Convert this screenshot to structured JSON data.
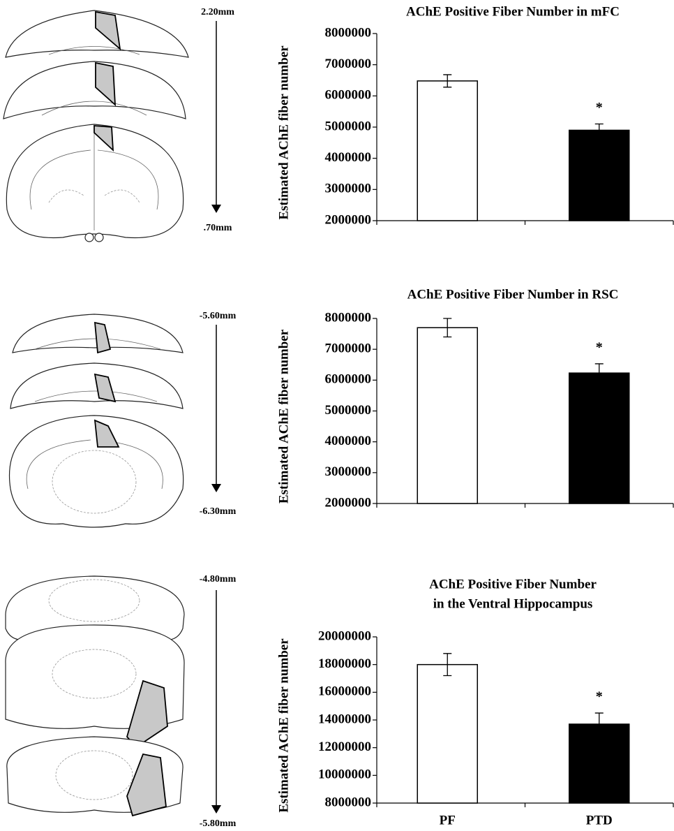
{
  "sections": [
    {
      "top": "2.20mm",
      "bottom": ".70mm"
    },
    {
      "top": "-5.60mm",
      "bottom": "-6.30mm"
    },
    {
      "top": "-4.80mm",
      "bottom": "-5.80mm"
    }
  ],
  "chart_data": [
    {
      "type": "bar",
      "title": [
        "AChE Positive Fiber Number in mFC"
      ],
      "y_label": "Estimated AChE fiber number",
      "categories": [
        null,
        null
      ],
      "values": [
        6480000,
        4900000
      ],
      "errors": [
        200000,
        200000
      ],
      "colors": [
        "#ffffff",
        "#000000"
      ],
      "annotations": [
        null,
        "*"
      ],
      "ylim": [
        2000000,
        8000000
      ],
      "yticks": [
        2000000,
        3000000,
        4000000,
        5000000,
        6000000,
        7000000,
        8000000
      ]
    },
    {
      "type": "bar",
      "title": [
        "AChE Positive Fiber Number in RSC"
      ],
      "y_label": "Estimated AChE fiber number",
      "categories": [
        null,
        null
      ],
      "values": [
        7700000,
        6230000
      ],
      "errors": [
        300000,
        300000
      ],
      "colors": [
        "#ffffff",
        "#000000"
      ],
      "annotations": [
        null,
        "*"
      ],
      "ylim": [
        2000000,
        8000000
      ],
      "yticks": [
        2000000,
        3000000,
        4000000,
        5000000,
        6000000,
        7000000,
        8000000
      ]
    },
    {
      "type": "bar",
      "title": [
        "AChE Positive Fiber Number",
        "in the Ventral Hippocampus"
      ],
      "y_label": "Estimated AChE fiber number",
      "categories": [
        "PF",
        "PTD"
      ],
      "values": [
        18000000,
        13700000
      ],
      "errors": [
        800000,
        800000
      ],
      "colors": [
        "#ffffff",
        "#000000"
      ],
      "annotations": [
        null,
        "*"
      ],
      "ylim": [
        8000000,
        20000000
      ],
      "yticks": [
        8000000,
        10000000,
        12000000,
        14000000,
        16000000,
        18000000,
        20000000
      ]
    }
  ]
}
